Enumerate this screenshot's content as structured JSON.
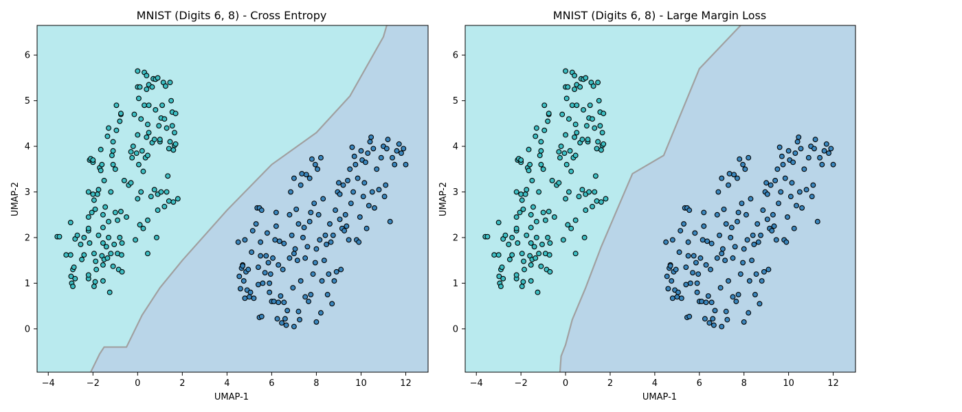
{
  "colors": {
    "region_class_a": "#b9eaee",
    "region_class_b": "#b9d5e8",
    "point_class_a": "#3dbfc4",
    "point_class_b": "#3a86bd",
    "point_edge": "#000000",
    "boundary": "#a0a0a0"
  },
  "chart_data": [
    {
      "type": "scatter",
      "title": "MNIST (Digits 6, 8) - Cross Entropy",
      "xlabel": "UMAP-1",
      "ylabel": "UMAP-2",
      "xlim": [
        -4.5,
        13.0
      ],
      "ylim": [
        -0.95,
        6.65
      ],
      "xticks": [
        -4,
        -2,
        0,
        2,
        4,
        6,
        8,
        10,
        12
      ],
      "yticks": [
        0,
        1,
        2,
        3,
        4,
        5,
        6
      ],
      "decision_boundary": [
        [
          -2.1,
          -0.95
        ],
        [
          -1.7,
          -0.55
        ],
        [
          -1.5,
          -0.4
        ],
        [
          -0.5,
          -0.4
        ],
        [
          0.2,
          0.3
        ],
        [
          1.0,
          0.9
        ],
        [
          2.0,
          1.5
        ],
        [
          4.0,
          2.6
        ],
        [
          6.0,
          3.6
        ],
        [
          8.0,
          4.3
        ],
        [
          9.5,
          5.1
        ],
        [
          11.0,
          6.4
        ],
        [
          11.15,
          6.65
        ]
      ],
      "legend": "none"
    },
    {
      "type": "scatter",
      "title": "MNIST (Digits 6, 8) - Large Margin Loss",
      "xlabel": "UMAP-1",
      "ylabel": "UMAP-2",
      "xlim": [
        -4.5,
        13.0
      ],
      "ylim": [
        -0.95,
        6.65
      ],
      "xticks": [
        -4,
        -2,
        0,
        2,
        4,
        6,
        8,
        10,
        12
      ],
      "yticks": [
        0,
        1,
        2,
        3,
        4,
        5,
        6
      ],
      "decision_boundary": [
        [
          -0.25,
          -0.95
        ],
        [
          -0.2,
          -0.6
        ],
        [
          0.0,
          -0.35
        ],
        [
          0.3,
          0.2
        ],
        [
          0.9,
          0.9
        ],
        [
          1.6,
          1.8
        ],
        [
          2.3,
          2.6
        ],
        [
          3.0,
          3.4
        ],
        [
          4.4,
          3.8
        ],
        [
          6.0,
          5.7
        ],
        [
          7.85,
          6.65
        ]
      ],
      "legend": "none"
    }
  ],
  "points": {
    "class_a": [
      [
        -3.6,
        2.02
      ],
      [
        -3.5,
        2.02
      ],
      [
        -3.2,
        1.62
      ],
      [
        -3.0,
        2.33
      ],
      [
        -3.0,
        1.62
      ],
      [
        -2.98,
        1.15
      ],
      [
        -2.95,
        1.0
      ],
      [
        -2.9,
        1.3
      ],
      [
        -2.85,
        1.35
      ],
      [
        -2.9,
        0.93
      ],
      [
        -2.8,
        1.1
      ],
      [
        -2.8,
        1.97
      ],
      [
        -2.7,
        2.05
      ],
      [
        -2.55,
        1.85
      ],
      [
        -2.5,
        1.52
      ],
      [
        -2.4,
        1.62
      ],
      [
        -2.4,
        2.0
      ],
      [
        -2.2,
        1.1
      ],
      [
        -2.2,
        1.18
      ],
      [
        -2.15,
        1.88
      ],
      [
        -2.2,
        2.15
      ],
      [
        -2.2,
        2.2
      ],
      [
        -2.2,
        2.45
      ],
      [
        -2.2,
        3.0
      ],
      [
        -2.15,
        3.7
      ],
      [
        -2.1,
        3.73
      ],
      [
        -2.05,
        2.55
      ],
      [
        -2.0,
        2.95
      ],
      [
        -2.0,
        3.65
      ],
      [
        -2.0,
        3.7
      ],
      [
        -1.95,
        2.82
      ],
      [
        -1.9,
        2.62
      ],
      [
        -1.9,
        1.03
      ],
      [
        -1.95,
        0.93
      ],
      [
        -1.95,
        1.65
      ],
      [
        -1.88,
        1.48
      ],
      [
        -1.85,
        1.3
      ],
      [
        -1.8,
        2.95
      ],
      [
        -1.75,
        2.05
      ],
      [
        -1.7,
        3.53
      ],
      [
        -1.75,
        3.05
      ],
      [
        -1.65,
        3.47
      ],
      [
        -1.6,
        3.6
      ],
      [
        -1.65,
        3.93
      ],
      [
        -1.6,
        1.6
      ],
      [
        -1.55,
        1.05
      ],
      [
        -1.55,
        1.88
      ],
      [
        -1.55,
        2.22
      ],
      [
        -1.55,
        2.5
      ],
      [
        -1.55,
        1.4
      ],
      [
        -1.5,
        1.52
      ],
      [
        -1.5,
        3.25
      ],
      [
        -1.45,
        2.67
      ],
      [
        -1.4,
        1.8
      ],
      [
        -1.35,
        1.55
      ],
      [
        -1.35,
        4.22
      ],
      [
        -1.3,
        4.4
      ],
      [
        -1.25,
        0.8
      ],
      [
        -1.3,
        2.0
      ],
      [
        -1.3,
        2.35
      ],
      [
        -1.2,
        1.65
      ],
      [
        -1.2,
        3.0
      ],
      [
        -1.15,
        3.8
      ],
      [
        -1.1,
        4.1
      ],
      [
        -1.1,
        3.6
      ],
      [
        -1.1,
        3.9
      ],
      [
        -1.1,
        1.37
      ],
      [
        -1.05,
        1.85
      ],
      [
        -1.0,
        2.55
      ],
      [
        -1.0,
        3.5
      ],
      [
        -0.95,
        4.35
      ],
      [
        -0.95,
        4.9
      ],
      [
        -0.9,
        2.38
      ],
      [
        -0.9,
        1.65
      ],
      [
        -0.85,
        1.3
      ],
      [
        -0.8,
        4.55
      ],
      [
        -0.8,
        2.0
      ],
      [
        -0.75,
        2.57
      ],
      [
        -0.75,
        4.7
      ],
      [
        -0.75,
        4.72
      ],
      [
        -0.72,
        1.62
      ],
      [
        -0.7,
        1.25
      ],
      [
        -0.7,
        1.88
      ],
      [
        -0.6,
        3.25
      ],
      [
        -0.5,
        2.45
      ],
      [
        -0.4,
        3.15
      ],
      [
        -0.3,
        3.88
      ],
      [
        -0.3,
        3.2
      ],
      [
        -0.25,
        3.75
      ],
      [
        -0.2,
        4.0
      ],
      [
        -0.15,
        4.7
      ],
      [
        -0.1,
        1.95
      ],
      [
        -0.05,
        3.85
      ],
      [
        0.0,
        2.85
      ],
      [
        0.0,
        4.25
      ],
      [
        0.0,
        5.65
      ],
      [
        0.05,
        3.6
      ],
      [
        0.0,
        5.3
      ],
      [
        0.05,
        5.05
      ],
      [
        0.1,
        5.3
      ],
      [
        0.1,
        2.28
      ],
      [
        0.15,
        3.0
      ],
      [
        0.15,
        4.6
      ],
      [
        0.2,
        3.9
      ],
      [
        0.25,
        3.45
      ],
      [
        0.25,
        2.2
      ],
      [
        0.3,
        5.62
      ],
      [
        0.35,
        3.75
      ],
      [
        0.3,
        4.9
      ],
      [
        0.4,
        5.25
      ],
      [
        0.4,
        4.2
      ],
      [
        0.45,
        1.65
      ],
      [
        0.45,
        3.8
      ],
      [
        0.4,
        5.55
      ],
      [
        0.45,
        2.38
      ],
      [
        0.45,
        4.48
      ],
      [
        0.5,
        4.9
      ],
      [
        0.5,
        5.35
      ],
      [
        0.5,
        4.3
      ],
      [
        0.6,
        2.9
      ],
      [
        0.65,
        5.3
      ],
      [
        0.65,
        4.08
      ],
      [
        0.7,
        5.48
      ],
      [
        0.75,
        3.05
      ],
      [
        0.75,
        4.15
      ],
      [
        0.8,
        4.8
      ],
      [
        0.8,
        5.47
      ],
      [
        0.85,
        2.0
      ],
      [
        0.9,
        2.95
      ],
      [
        0.9,
        5.5
      ],
      [
        0.95,
        4.45
      ],
      [
        0.9,
        2.6
      ],
      [
        1.0,
        4.1
      ],
      [
        1.0,
        4.15
      ],
      [
        1.05,
        3.0
      ],
      [
        1.05,
        4.62
      ],
      [
        1.1,
        4.9
      ],
      [
        1.15,
        5.4
      ],
      [
        1.2,
        2.68
      ],
      [
        1.2,
        4.6
      ],
      [
        1.25,
        5.32
      ],
      [
        1.3,
        4.4
      ],
      [
        1.3,
        3.0
      ],
      [
        1.35,
        3.35
      ],
      [
        1.4,
        3.95
      ],
      [
        1.4,
        2.8
      ],
      [
        1.45,
        5.4
      ],
      [
        1.45,
        4.1
      ],
      [
        1.5,
        5.0
      ],
      [
        1.55,
        4.75
      ],
      [
        1.55,
        4.45
      ],
      [
        1.6,
        3.92
      ],
      [
        1.65,
        4.3
      ],
      [
        1.65,
        4.02
      ],
      [
        1.7,
        4.05
      ],
      [
        1.7,
        4.72
      ],
      [
        1.6,
        2.78
      ],
      [
        1.8,
        2.85
      ]
    ],
    "class_b": [
      [
        4.5,
        1.9
      ],
      [
        4.55,
        1.15
      ],
      [
        4.6,
        0.88
      ],
      [
        4.65,
        1.33
      ],
      [
        4.7,
        1.4
      ],
      [
        4.7,
        1.38
      ],
      [
        4.75,
        1.05
      ],
      [
        4.8,
        0.67
      ],
      [
        4.8,
        1.95
      ],
      [
        4.85,
        1.25
      ],
      [
        4.9,
        0.85
      ],
      [
        4.95,
        1.3
      ],
      [
        5.0,
        0.7
      ],
      [
        5.05,
        0.8
      ],
      [
        5.1,
        1.68
      ],
      [
        5.15,
        2.15
      ],
      [
        5.2,
        0.67
      ],
      [
        5.3,
        2.3
      ],
      [
        5.35,
        2.65
      ],
      [
        5.4,
        1.35
      ],
      [
        5.4,
        0.97
      ],
      [
        5.45,
        2.65
      ],
      [
        5.45,
        0.25
      ],
      [
        5.5,
        1.9
      ],
      [
        5.55,
        2.6
      ],
      [
        5.5,
        1.6
      ],
      [
        5.55,
        0.27
      ],
      [
        5.6,
        1.0
      ],
      [
        5.7,
        1.23
      ],
      [
        5.75,
        1.6
      ],
      [
        5.8,
        2.1
      ],
      [
        5.85,
        1.45
      ],
      [
        5.9,
        0.8
      ],
      [
        5.9,
        1.0
      ],
      [
        5.95,
        1.2
      ],
      [
        6.0,
        0.6
      ],
      [
        6.05,
        1.55
      ],
      [
        6.1,
        0.6
      ],
      [
        6.15,
        1.95
      ],
      [
        6.2,
        2.55
      ],
      [
        6.2,
        2.25
      ],
      [
        6.25,
        0.22
      ],
      [
        6.3,
        1.4
      ],
      [
        6.3,
        0.58
      ],
      [
        6.35,
        1.92
      ],
      [
        6.4,
        0.72
      ],
      [
        6.45,
        0.13
      ],
      [
        6.5,
        1.3
      ],
      [
        6.55,
        1.87
      ],
      [
        6.55,
        0.58
      ],
      [
        6.6,
        0.22
      ],
      [
        6.65,
        0.08
      ],
      [
        6.7,
        0.4
      ],
      [
        6.8,
        1.55
      ],
      [
        6.8,
        2.5
      ],
      [
        6.85,
        3.0
      ],
      [
        6.9,
        2.05
      ],
      [
        6.95,
        0.9
      ],
      [
        7.0,
        1.65
      ],
      [
        7.0,
        3.3
      ],
      [
        7.0,
        0.05
      ],
      [
        7.05,
        1.75
      ],
      [
        7.1,
        2.62
      ],
      [
        7.15,
        1.5
      ],
      [
        7.2,
        2.3
      ],
      [
        7.2,
        0.38
      ],
      [
        7.25,
        0.2
      ],
      [
        7.3,
        1.05
      ],
      [
        7.3,
        3.15
      ],
      [
        7.35,
        3.4
      ],
      [
        7.4,
        2.0
      ],
      [
        7.45,
        2.22
      ],
      [
        7.5,
        1.55
      ],
      [
        7.5,
        0.7
      ],
      [
        7.55,
        3.38
      ],
      [
        7.6,
        1.8
      ],
      [
        7.65,
        0.6
      ],
      [
        7.7,
        3.3
      ],
      [
        7.7,
        2.35
      ],
      [
        7.75,
        0.75
      ],
      [
        7.75,
        2.55
      ],
      [
        7.8,
        3.72
      ],
      [
        7.85,
        1.2
      ],
      [
        7.9,
        2.75
      ],
      [
        7.95,
        1.45
      ],
      [
        7.95,
        3.6
      ],
      [
        8.0,
        0.15
      ],
      [
        8.0,
        1.75
      ],
      [
        8.05,
        3.5
      ],
      [
        8.1,
        2.5
      ],
      [
        8.15,
        1.95
      ],
      [
        8.2,
        3.75
      ],
      [
        8.2,
        0.35
      ],
      [
        8.25,
        1.05
      ],
      [
        8.3,
        2.85
      ],
      [
        8.35,
        1.5
      ],
      [
        8.4,
        2.05
      ],
      [
        8.45,
        1.85
      ],
      [
        8.5,
        0.75
      ],
      [
        8.55,
        1.2
      ],
      [
        8.6,
        2.3
      ],
      [
        8.65,
        1.9
      ],
      [
        8.7,
        0.55
      ],
      [
        8.75,
        2.05
      ],
      [
        8.8,
        1.05
      ],
      [
        8.85,
        2.6
      ],
      [
        8.9,
        1.25
      ],
      [
        8.95,
        3.0
      ],
      [
        9.0,
        3.2
      ],
      [
        9.05,
        2.4
      ],
      [
        9.05,
        2.95
      ],
      [
        9.1,
        1.3
      ],
      [
        9.15,
        2.2
      ],
      [
        9.2,
        3.15
      ],
      [
        9.25,
        2.15
      ],
      [
        9.3,
        2.5
      ],
      [
        9.35,
        2.25
      ],
      [
        9.4,
        3.25
      ],
      [
        9.45,
        1.95
      ],
      [
        9.5,
        3.5
      ],
      [
        9.55,
        2.75
      ],
      [
        9.6,
        3.98
      ],
      [
        9.65,
        3.0
      ],
      [
        9.7,
        3.78
      ],
      [
        9.75,
        3.6
      ],
      [
        9.8,
        1.95
      ],
      [
        9.85,
        3.3
      ],
      [
        9.9,
        1.9
      ],
      [
        9.95,
        2.45
      ],
      [
        10.0,
        3.9
      ],
      [
        10.05,
        3.7
      ],
      [
        10.1,
        2.9
      ],
      [
        10.15,
        3.2
      ],
      [
        10.2,
        3.65
      ],
      [
        10.25,
        2.2
      ],
      [
        10.3,
        3.85
      ],
      [
        10.35,
        2.7
      ],
      [
        10.4,
        4.1
      ],
      [
        10.45,
        4.2
      ],
      [
        10.5,
        3.0
      ],
      [
        10.55,
        3.95
      ],
      [
        10.6,
        2.65
      ],
      [
        10.7,
        3.5
      ],
      [
        10.8,
        3.05
      ],
      [
        10.9,
        3.75
      ],
      [
        11.0,
        4.0
      ],
      [
        11.05,
        2.9
      ],
      [
        11.1,
        3.15
      ],
      [
        11.15,
        3.95
      ],
      [
        11.2,
        4.15
      ],
      [
        11.3,
        2.35
      ],
      [
        11.4,
        3.75
      ],
      [
        11.5,
        3.6
      ],
      [
        11.6,
        3.9
      ],
      [
        11.7,
        4.05
      ],
      [
        11.8,
        3.85
      ],
      [
        11.9,
        3.95
      ],
      [
        12.0,
        3.6
      ]
    ]
  }
}
